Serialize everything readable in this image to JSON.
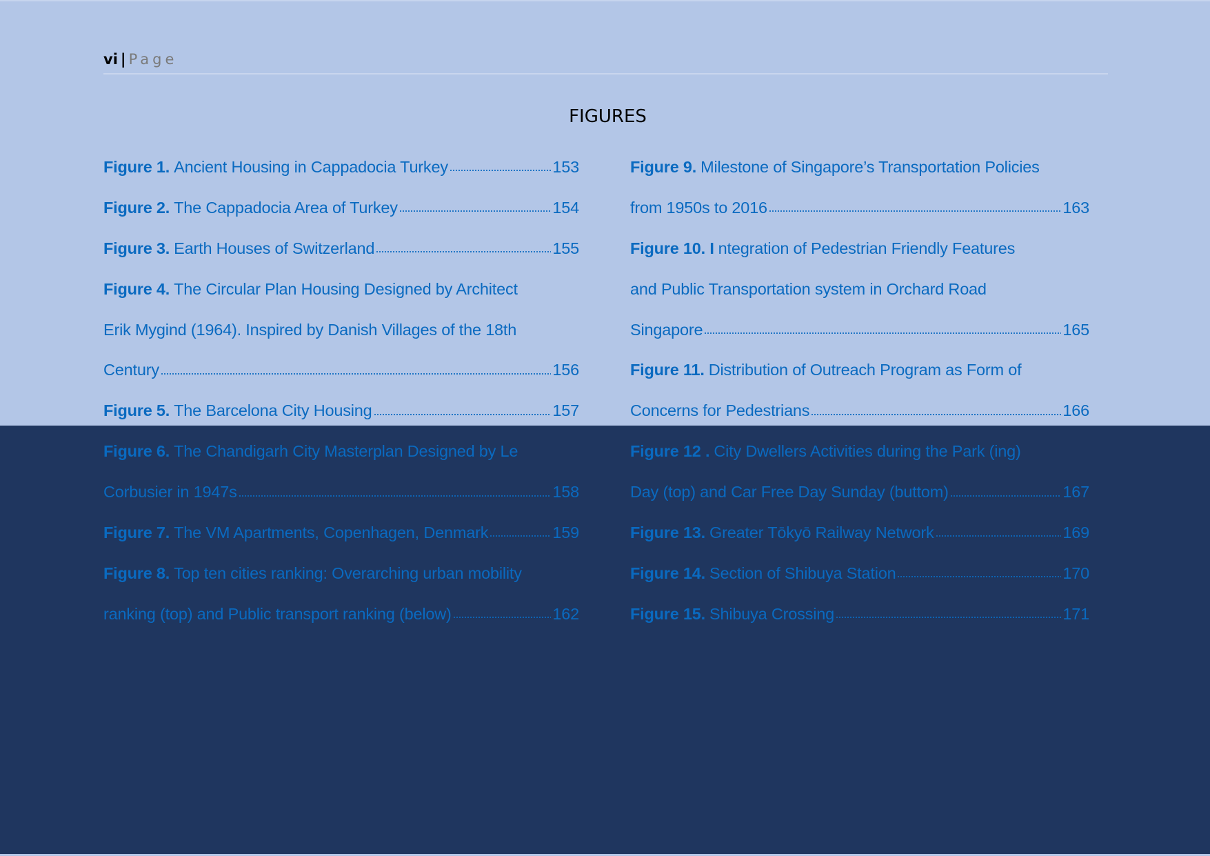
{
  "header": {
    "page_number": "vi",
    "separator": "|",
    "page_word": "Page"
  },
  "title": "FIGURES",
  "colors": {
    "light_background": "#b3c6e7",
    "dark_overlay": "#1f365f",
    "link_text": "#0a6ac0"
  },
  "columns": [
    {
      "entries": [
        {
          "label": "Figure 1.",
          "lines": [
            "Ancient Housing in Cappadocia Turkey"
          ],
          "page": "153"
        },
        {
          "label": "Figure 2.",
          "lines": [
            "The Cappadocia Area of Turkey"
          ],
          "page": "154"
        },
        {
          "label": "Figure 3.",
          "lines": [
            "Earth Houses of Switzerland"
          ],
          "page": "155"
        },
        {
          "label": "Figure 4.",
          "lines": [
            "The Circular Plan Housing Designed by Architect",
            "Erik Mygind (1964). Inspired by Danish Villages of the 18th",
            "Century"
          ],
          "page": "156"
        },
        {
          "label": "Figure 5.",
          "lines": [
            "The Barcelona City Housing"
          ],
          "page": "157"
        },
        {
          "label": "Figure 6.",
          "lines": [
            "The Chandigarh City Masterplan Designed by Le",
            "Corbusier in 1947s"
          ],
          "page": "158"
        },
        {
          "label": "Figure 7.",
          "lines": [
            "The VM Apartments, Copenhagen, Denmark"
          ],
          "page": "159"
        },
        {
          "label": "Figure 8.",
          "lines": [
            "Top ten cities ranking: Overarching urban mobility",
            "ranking (top) and Public transport ranking (below)"
          ],
          "page": "162"
        }
      ]
    },
    {
      "entries": [
        {
          "label": "Figure 9.",
          "lines": [
            "Milestone of Singapore’s Transportation Policies",
            "from 1950s to 2016"
          ],
          "page": "163"
        },
        {
          "label": "Figure 10. I",
          "lines": [
            "ntegration of Pedestrian Friendly Features",
            "and Public Transportation system in Orchard Road",
            "Singapore"
          ],
          "page": "165"
        },
        {
          "label": "Figure 11.",
          "lines": [
            "Distribution of Outreach Program as Form of",
            "Concerns for Pedestrians"
          ],
          "page": "166"
        },
        {
          "label": "Figure 12 .",
          "lines": [
            "City Dwellers Activities during the Park (ing)",
            "Day (top) and Car Free Day Sunday (buttom)"
          ],
          "page": "167"
        },
        {
          "label": "Figure 13.",
          "lines": [
            "Greater Tōkyō Railway Network"
          ],
          "page": "169"
        },
        {
          "label": "Figure 14.",
          "lines": [
            "Section of Shibuya Station"
          ],
          "page": "170"
        },
        {
          "label": "Figure 15.",
          "lines": [
            "Shibuya Crossing"
          ],
          "page": "171"
        }
      ]
    }
  ]
}
